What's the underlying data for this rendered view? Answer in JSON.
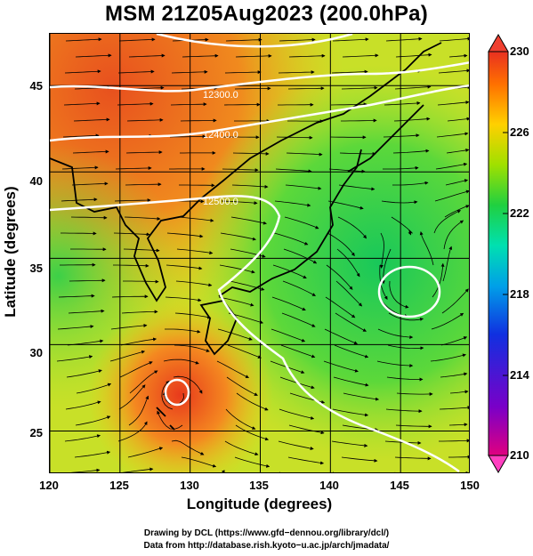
{
  "title": "MSM 21Z05Aug2023 (200.0hPa)",
  "axes": {
    "xlabel": "Longitude (degrees)",
    "ylabel": "Latitude  (degrees)",
    "xlim": [
      120,
      150
    ],
    "ylim": [
      22.5,
      48
    ],
    "xticks": [
      "120",
      "125",
      "130",
      "135",
      "140",
      "145",
      "150"
    ],
    "yticks": [
      "25",
      "30",
      "35",
      "40",
      "45"
    ]
  },
  "contours": {
    "color": "#ffffff",
    "labels": [
      "12300.0",
      "12400.0",
      "12500.0"
    ]
  },
  "colorbar": {
    "min": 210,
    "max": 230,
    "ticks": [
      "230",
      "226",
      "222",
      "218",
      "214",
      "210"
    ],
    "colors": [
      "#e0007f",
      "#7a00c8",
      "#1030e0",
      "#00a0e8",
      "#00e0b0",
      "#20d040",
      "#a0e000",
      "#ffd000",
      "#ff7000",
      "#e83020"
    ]
  },
  "credits": {
    "line1": "Drawing by DCL (https://www.gfd−dennou.org/library/dcl/)",
    "line2": "Data from http://database.rish.kyoto−u.ac.jp/arch/jmadata/"
  }
}
